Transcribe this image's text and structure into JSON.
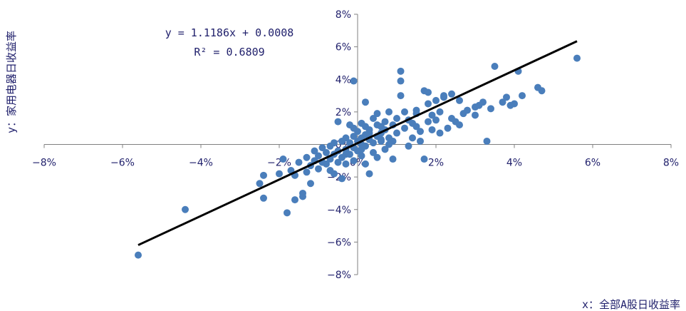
{
  "chart_data": {
    "type": "scatter",
    "xlabel": "x：全部A股日收益率",
    "ylabel": "y：家用电器日收益率",
    "xlim": [
      -0.08,
      0.08
    ],
    "ylim": [
      -0.08,
      0.08
    ],
    "x_ticks": [
      "−8%",
      "−6%",
      "−4%",
      "−2%",
      "0%",
      "2%",
      "4%",
      "6%",
      "8%"
    ],
    "y_ticks": [
      "8%",
      "6%",
      "4%",
      "2%",
      "0%",
      "−2%",
      "−4%",
      "−6%",
      "−8%"
    ],
    "equation": "y = 1.1186x + 0.0008",
    "r_squared": "R² = 0.6809",
    "trendline": {
      "slope": 1.1186,
      "intercept": 0.0008,
      "x_range": [
        -0.056,
        0.056
      ]
    },
    "marker_color": "#4a7ebb",
    "line_color": "#000000",
    "points": [
      [
        -0.056,
        -0.068
      ],
      [
        -0.044,
        -0.04
      ],
      [
        -0.025,
        -0.024
      ],
      [
        -0.024,
        -0.019
      ],
      [
        -0.024,
        -0.033
      ],
      [
        -0.02,
        -0.018
      ],
      [
        -0.019,
        -0.009
      ],
      [
        -0.018,
        -0.042
      ],
      [
        -0.017,
        -0.016
      ],
      [
        -0.016,
        -0.034
      ],
      [
        -0.016,
        -0.019
      ],
      [
        -0.015,
        -0.011
      ],
      [
        -0.014,
        -0.03
      ],
      [
        -0.014,
        -0.032
      ],
      [
        -0.013,
        -0.017
      ],
      [
        -0.013,
        -0.008
      ],
      [
        -0.012,
        -0.024
      ],
      [
        -0.012,
        -0.013
      ],
      [
        -0.011,
        -0.004
      ],
      [
        -0.011,
        -0.01
      ],
      [
        -0.01,
        -0.015
      ],
      [
        -0.01,
        -0.007
      ],
      [
        -0.009,
        -0.011
      ],
      [
        -0.009,
        -0.002
      ],
      [
        -0.008,
        -0.012
      ],
      [
        -0.008,
        -0.005
      ],
      [
        -0.007,
        -0.001
      ],
      [
        -0.007,
        -0.016
      ],
      [
        -0.007,
        -0.009
      ],
      [
        -0.006,
        -0.006
      ],
      [
        -0.006,
        0.001
      ],
      [
        -0.006,
        -0.018
      ],
      [
        -0.005,
        -0.004
      ],
      [
        -0.005,
        -0.011
      ],
      [
        -0.005,
        0.014
      ],
      [
        -0.004,
        -0.008
      ],
      [
        -0.004,
        0.002
      ],
      [
        -0.004,
        -0.021
      ],
      [
        -0.003,
        -0.003
      ],
      [
        -0.003,
        0.004
      ],
      [
        -0.003,
        -0.012
      ],
      [
        -0.002,
        0.001
      ],
      [
        -0.002,
        0.012
      ],
      [
        -0.002,
        -0.006
      ],
      [
        -0.001,
        0.039
      ],
      [
        -0.001,
        -0.002
      ],
      [
        -0.001,
        0.005
      ],
      [
        -0.001,
        -0.01
      ],
      [
        0.0,
        0.002
      ],
      [
        0.0,
        -0.004
      ],
      [
        0.0,
        0.008
      ],
      [
        0.001,
        0.0
      ],
      [
        0.001,
        -0.007
      ],
      [
        0.001,
        0.013
      ],
      [
        0.001,
        0.004
      ],
      [
        0.002,
        -0.001
      ],
      [
        0.002,
        0.026
      ],
      [
        0.002,
        0.006
      ],
      [
        0.002,
        -0.012
      ],
      [
        0.003,
        0.003
      ],
      [
        0.003,
        -0.018
      ],
      [
        0.003,
        0.009
      ],
      [
        0.004,
        0.001
      ],
      [
        0.004,
        0.016
      ],
      [
        0.004,
        -0.005
      ],
      [
        0.005,
        0.005
      ],
      [
        0.005,
        0.019
      ],
      [
        0.005,
        -0.008
      ],
      [
        0.006,
        0.002
      ],
      [
        0.006,
        0.011
      ],
      [
        0.006,
        0.007
      ],
      [
        0.007,
        0.014
      ],
      [
        0.007,
        -0.003
      ],
      [
        0.007,
        0.009
      ],
      [
        0.008,
        0.004
      ],
      [
        0.008,
        0.02
      ],
      [
        0.008,
        0.0
      ],
      [
        0.009,
        0.012
      ],
      [
        0.009,
        -0.009
      ],
      [
        0.01,
        0.007
      ],
      [
        0.01,
        0.016
      ],
      [
        0.011,
        0.045
      ],
      [
        0.011,
        0.03
      ],
      [
        0.011,
        0.039
      ],
      [
        0.012,
        0.01
      ],
      [
        0.012,
        0.02
      ],
      [
        0.013,
        0.015
      ],
      [
        0.013,
        -0.001
      ],
      [
        0.014,
        0.004
      ],
      [
        0.014,
        0.013
      ],
      [
        0.015,
        0.011
      ],
      [
        0.015,
        0.019
      ],
      [
        0.016,
        0.008
      ],
      [
        0.016,
        0.002
      ],
      [
        0.017,
        0.033
      ],
      [
        0.017,
        -0.009
      ],
      [
        0.018,
        0.025
      ],
      [
        0.018,
        0.014
      ],
      [
        0.019,
        0.009
      ],
      [
        0.02,
        0.015
      ],
      [
        0.02,
        0.027
      ],
      [
        0.021,
        0.02
      ],
      [
        0.021,
        0.007
      ],
      [
        0.022,
        0.029
      ],
      [
        0.022,
        0.03
      ],
      [
        0.023,
        0.01
      ],
      [
        0.024,
        0.016
      ],
      [
        0.025,
        0.014
      ],
      [
        0.026,
        0.012
      ],
      [
        0.027,
        0.019
      ],
      [
        0.028,
        0.021
      ],
      [
        0.03,
        0.023
      ],
      [
        0.03,
        0.018
      ],
      [
        0.031,
        0.024
      ],
      [
        0.032,
        0.026
      ],
      [
        0.033,
        0.002
      ],
      [
        0.034,
        0.022
      ],
      [
        0.035,
        0.048
      ],
      [
        0.037,
        0.026
      ],
      [
        0.038,
        0.029
      ],
      [
        0.039,
        0.024
      ],
      [
        0.04,
        0.025
      ],
      [
        0.041,
        0.045
      ],
      [
        0.042,
        0.03
      ],
      [
        0.046,
        0.035
      ],
      [
        0.047,
        0.033
      ],
      [
        0.056,
        0.053
      ],
      [
        0.024,
        0.031
      ],
      [
        0.026,
        0.027
      ],
      [
        0.018,
        0.032
      ],
      [
        0.019,
        0.018
      ],
      [
        0.015,
        0.021
      ],
      [
        0.005,
        0.012
      ],
      [
        0.003,
        0.007
      ],
      [
        -0.001,
        0.01
      ],
      [
        0.002,
        0.011
      ],
      [
        0.006,
        0.003
      ],
      [
        0.009,
        0.002
      ],
      [
        -0.003,
        -0.006
      ],
      [
        0.001,
        -0.003
      ]
    ]
  }
}
